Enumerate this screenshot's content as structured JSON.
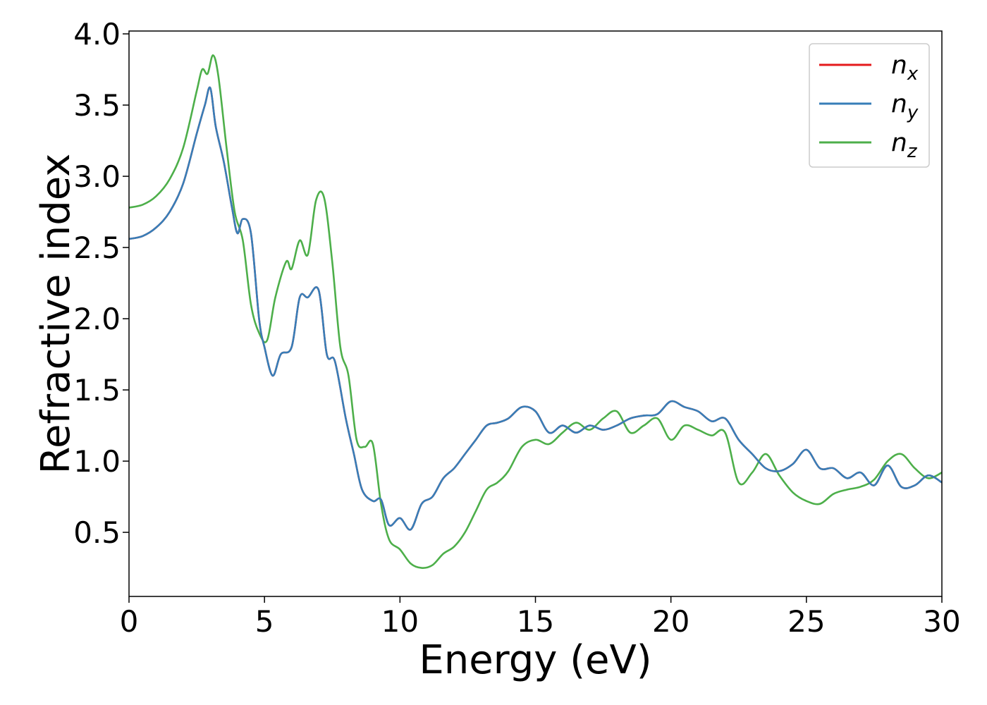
{
  "chart_data": {
    "type": "line",
    "xlabel": "Energy (eV)",
    "ylabel": "Refractive index",
    "xlim": [
      0,
      30
    ],
    "ylim": [
      0.05,
      4.02
    ],
    "x_ticks": [
      0,
      5,
      10,
      15,
      20,
      25,
      30
    ],
    "y_ticks": [
      0.5,
      1.0,
      1.5,
      2.0,
      2.5,
      3.0,
      3.5,
      4.0
    ],
    "x_tick_labels": [
      "0",
      "5",
      "10",
      "15",
      "20",
      "25",
      "30"
    ],
    "y_tick_labels": [
      "0.5",
      "1.0",
      "1.5",
      "2.0",
      "2.5",
      "3.0",
      "3.5",
      "4.0"
    ],
    "grid": false,
    "legend_position": "upper right",
    "legend": [
      {
        "base": "n",
        "sub": "x",
        "color": "#e41a1c"
      },
      {
        "base": "n",
        "sub": "y",
        "color": "#377eb8"
      },
      {
        "base": "n",
        "sub": "z",
        "color": "#4daf4a"
      }
    ],
    "series": [
      {
        "name": "n_x",
        "color": "#e41a1c",
        "x": [
          0,
          0.5,
          1,
          1.5,
          2,
          2.5,
          2.8,
          3.0,
          3.2,
          3.5,
          3.8,
          4.0,
          4.2,
          4.5,
          4.8,
          5.0,
          5.3,
          5.6,
          6.0,
          6.3,
          6.6,
          7.0,
          7.3,
          7.6,
          8.0,
          8.3,
          8.6,
          9.0,
          9.3,
          9.6,
          10.0,
          10.4,
          10.8,
          11.2,
          11.6,
          12.0,
          12.4,
          12.8,
          13.2,
          13.6,
          14.0,
          14.5,
          15.0,
          15.5,
          16.0,
          16.5,
          17.0,
          17.5,
          18.0,
          18.5,
          19.0,
          19.5,
          20.0,
          20.5,
          21.0,
          21.5,
          22.0,
          22.5,
          23.0,
          23.5,
          24.0,
          24.5,
          25.0,
          25.5,
          26.0,
          26.5,
          27.0,
          27.5,
          28.0,
          28.5,
          29.0,
          29.5,
          30.0
        ],
        "y": [
          2.56,
          2.58,
          2.64,
          2.75,
          2.95,
          3.3,
          3.5,
          3.62,
          3.35,
          3.1,
          2.78,
          2.6,
          2.7,
          2.6,
          2.0,
          1.8,
          1.6,
          1.75,
          1.8,
          2.15,
          2.15,
          2.2,
          1.75,
          1.7,
          1.3,
          1.05,
          0.8,
          0.72,
          0.73,
          0.55,
          0.6,
          0.52,
          0.7,
          0.75,
          0.88,
          0.95,
          1.05,
          1.15,
          1.25,
          1.27,
          1.3,
          1.38,
          1.35,
          1.2,
          1.25,
          1.2,
          1.25,
          1.22,
          1.25,
          1.3,
          1.32,
          1.33,
          1.42,
          1.38,
          1.35,
          1.28,
          1.3,
          1.15,
          1.05,
          0.95,
          0.93,
          0.98,
          1.08,
          0.95,
          0.95,
          0.88,
          0.92,
          0.83,
          0.97,
          0.82,
          0.83,
          0.9,
          0.85
        ]
      },
      {
        "name": "n_y",
        "color": "#377eb8",
        "x": [
          0,
          0.5,
          1,
          1.5,
          2,
          2.5,
          2.8,
          3.0,
          3.2,
          3.5,
          3.8,
          4.0,
          4.2,
          4.5,
          4.8,
          5.0,
          5.3,
          5.6,
          6.0,
          6.3,
          6.6,
          7.0,
          7.3,
          7.6,
          8.0,
          8.3,
          8.6,
          9.0,
          9.3,
          9.6,
          10.0,
          10.4,
          10.8,
          11.2,
          11.6,
          12.0,
          12.4,
          12.8,
          13.2,
          13.6,
          14.0,
          14.5,
          15.0,
          15.5,
          16.0,
          16.5,
          17.0,
          17.5,
          18.0,
          18.5,
          19.0,
          19.5,
          20.0,
          20.5,
          21.0,
          21.5,
          22.0,
          22.5,
          23.0,
          23.5,
          24.0,
          24.5,
          25.0,
          25.5,
          26.0,
          26.5,
          27.0,
          27.5,
          28.0,
          28.5,
          29.0,
          29.5,
          30.0
        ],
        "y": [
          2.56,
          2.58,
          2.64,
          2.75,
          2.95,
          3.3,
          3.5,
          3.62,
          3.35,
          3.1,
          2.78,
          2.6,
          2.7,
          2.6,
          2.0,
          1.8,
          1.6,
          1.75,
          1.8,
          2.15,
          2.15,
          2.2,
          1.75,
          1.7,
          1.3,
          1.05,
          0.8,
          0.72,
          0.73,
          0.55,
          0.6,
          0.52,
          0.7,
          0.75,
          0.88,
          0.95,
          1.05,
          1.15,
          1.25,
          1.27,
          1.3,
          1.38,
          1.35,
          1.2,
          1.25,
          1.2,
          1.25,
          1.22,
          1.25,
          1.3,
          1.32,
          1.33,
          1.42,
          1.38,
          1.35,
          1.28,
          1.3,
          1.15,
          1.05,
          0.95,
          0.93,
          0.98,
          1.08,
          0.95,
          0.95,
          0.88,
          0.92,
          0.83,
          0.97,
          0.82,
          0.83,
          0.9,
          0.85
        ]
      },
      {
        "name": "n_z",
        "color": "#4daf4a",
        "x": [
          0,
          0.5,
          1,
          1.5,
          2,
          2.5,
          2.7,
          2.9,
          3.1,
          3.3,
          3.6,
          3.9,
          4.2,
          4.5,
          4.8,
          5.1,
          5.4,
          5.8,
          6.0,
          6.3,
          6.6,
          6.9,
          7.2,
          7.5,
          7.8,
          8.1,
          8.4,
          8.7,
          9.0,
          9.3,
          9.6,
          10.0,
          10.4,
          10.8,
          11.2,
          11.6,
          12.0,
          12.4,
          12.8,
          13.2,
          13.6,
          14.0,
          14.5,
          15.0,
          15.5,
          16.0,
          16.5,
          17.0,
          17.5,
          18.0,
          18.5,
          19.0,
          19.5,
          20.0,
          20.5,
          21.0,
          21.5,
          22.0,
          22.5,
          23.0,
          23.5,
          24.0,
          24.5,
          25.0,
          25.5,
          26.0,
          26.5,
          27.0,
          27.5,
          28.0,
          28.5,
          29.0,
          29.5,
          30.0
        ],
        "y": [
          2.78,
          2.8,
          2.86,
          2.98,
          3.2,
          3.6,
          3.75,
          3.72,
          3.85,
          3.7,
          3.2,
          2.75,
          2.55,
          2.1,
          1.9,
          1.85,
          2.15,
          2.4,
          2.35,
          2.55,
          2.45,
          2.83,
          2.85,
          2.4,
          1.8,
          1.6,
          1.15,
          1.1,
          1.12,
          0.7,
          0.45,
          0.38,
          0.28,
          0.25,
          0.27,
          0.35,
          0.4,
          0.5,
          0.65,
          0.8,
          0.85,
          0.93,
          1.1,
          1.15,
          1.12,
          1.2,
          1.27,
          1.22,
          1.3,
          1.35,
          1.2,
          1.25,
          1.3,
          1.15,
          1.25,
          1.22,
          1.18,
          1.2,
          0.85,
          0.92,
          1.05,
          0.9,
          0.78,
          0.72,
          0.7,
          0.77,
          0.8,
          0.82,
          0.87,
          1.0,
          1.05,
          0.95,
          0.88,
          0.92
        ]
      }
    ]
  }
}
